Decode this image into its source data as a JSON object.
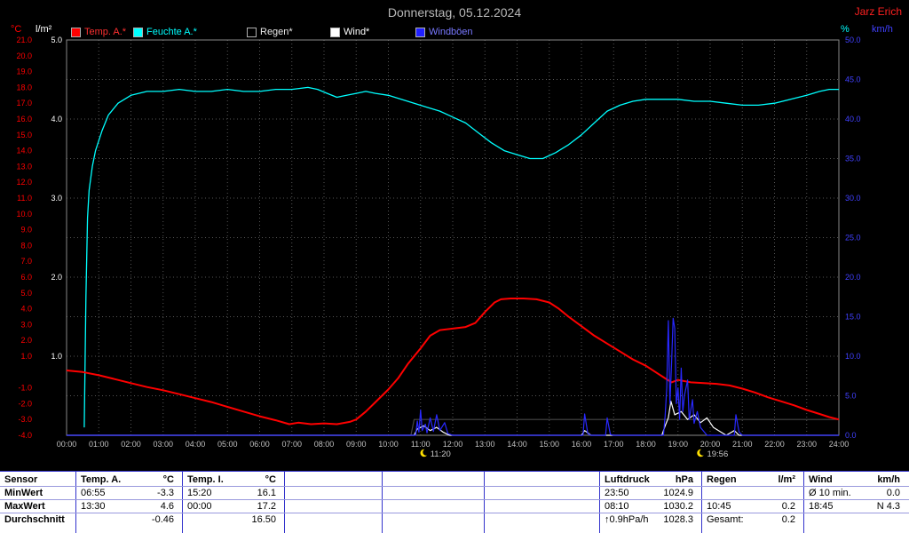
{
  "window": {
    "title": "Donnerstag, 05.12.2024",
    "owner": "Jarz Erich"
  },
  "legend": [
    {
      "label": "Temp. A.*",
      "swatch": "#ff0000",
      "text": "#ff3030"
    },
    {
      "label": "Feuchte A.*",
      "swatch": "#00ffff",
      "text": "#00ffff"
    },
    {
      "label": "Regen*",
      "swatch": "#000000",
      "text": "#e8e8e8"
    },
    {
      "label": "Wind*",
      "swatch": "#ffffff",
      "text": "#ffffff"
    },
    {
      "label": "Windböen",
      "swatch": "#2020ff",
      "text": "#7878ff"
    }
  ],
  "chart_data": {
    "type": "line",
    "title": "Donnerstag, 05.12.2024",
    "grid": "dotted",
    "marker_icon_color": "#ffe000",
    "x_ticks": [
      [
        "00:00",
        0
      ],
      [
        "01:00",
        1
      ],
      [
        "02:00",
        2
      ],
      [
        "03:00",
        3
      ],
      [
        "04:00",
        4
      ],
      [
        "05:00",
        5
      ],
      [
        "06:00",
        6
      ],
      [
        "07:00",
        7
      ],
      [
        "08:00",
        8
      ],
      [
        "09:00",
        9
      ],
      [
        "10:00",
        10
      ],
      [
        "11:00",
        11
      ],
      [
        "12:00",
        12
      ],
      [
        "13:00",
        13
      ],
      [
        "14:00",
        14
      ],
      [
        "15:00",
        15
      ],
      [
        "16:00",
        16
      ],
      [
        "17:00",
        17
      ],
      [
        "18:00",
        18
      ],
      [
        "19:00",
        19
      ],
      [
        "20:00",
        20
      ],
      [
        "21:00",
        21
      ],
      [
        "22:00",
        22
      ],
      [
        "23:00",
        23
      ],
      [
        "24:00",
        24
      ]
    ],
    "axes": {
      "temp_c": {
        "label": "°C",
        "color": "#ff0000",
        "min": -4,
        "max": 21,
        "ticks": [
          [
            "21.0",
            21
          ],
          [
            "20.0",
            20
          ],
          [
            "19.0",
            19
          ],
          [
            "18.0",
            18
          ],
          [
            "17.0",
            17
          ],
          [
            "16.0",
            16
          ],
          [
            "15.0",
            15
          ],
          [
            "14.0",
            14
          ],
          [
            "13.0",
            13
          ],
          [
            "12.0",
            12
          ],
          [
            "11.0",
            11
          ],
          [
            "10.0",
            10
          ],
          [
            "9.0",
            9
          ],
          [
            "8.0",
            8
          ],
          [
            "7.0",
            7
          ],
          [
            "6.0",
            6
          ],
          [
            "5.0",
            5
          ],
          [
            "4.0",
            4
          ],
          [
            "3.0",
            3
          ],
          [
            "2.0",
            2
          ],
          [
            "1.0",
            1
          ],
          [
            "-1.0",
            -1
          ],
          [
            "-2.0",
            -2
          ],
          [
            "-3.0",
            -3
          ],
          [
            "-4.0",
            -4
          ]
        ]
      },
      "rain_lm2": {
        "label": "l/m²",
        "color": "#ffffff",
        "min": 0,
        "max": 5,
        "ticks": [
          [
            "5.0",
            5
          ],
          [
            "4.0",
            4
          ],
          [
            "3.0",
            3
          ],
          [
            "2.0",
            2
          ],
          [
            "1.0",
            1
          ]
        ]
      },
      "humidity_pct": {
        "label": "%",
        "color": "#00ffff",
        "min": 0,
        "max": 100,
        "ticks": []
      },
      "wind_kmh": {
        "label": "km/h",
        "color": "#4040ff",
        "min": 0,
        "max": 50,
        "ticks": [
          [
            "50.0",
            50
          ],
          [
            "45.0",
            45
          ],
          [
            "40.0",
            40
          ],
          [
            "35.0",
            35
          ],
          [
            "30.0",
            30
          ],
          [
            "25.0",
            25
          ],
          [
            "20.0",
            20
          ],
          [
            "15.0",
            15
          ],
          [
            "10.0",
            10
          ],
          [
            "5.0",
            5
          ],
          [
            "0.0",
            0
          ]
        ]
      }
    },
    "series": [
      {
        "key": "regen",
        "name": "Regen*",
        "axis": "rain_lm2",
        "color": "#474747",
        "width": 1.2,
        "points": [
          [
            0,
            0
          ],
          [
            10.7,
            0
          ],
          [
            10.8,
            0.2
          ],
          [
            24,
            0.2
          ]
        ]
      },
      {
        "key": "feuchte_a",
        "name": "Feuchte A.*",
        "axis": "humidity_pct",
        "color": "#00ffff",
        "width": 1.3,
        "points": [
          [
            0.55,
            2
          ],
          [
            0.6,
            35
          ],
          [
            0.65,
            55
          ],
          [
            0.7,
            62
          ],
          [
            0.8,
            68
          ],
          [
            0.9,
            72
          ],
          [
            1.1,
            77
          ],
          [
            1.3,
            81
          ],
          [
            1.6,
            84
          ],
          [
            2,
            86
          ],
          [
            2.5,
            87
          ],
          [
            3,
            87
          ],
          [
            3.5,
            87.5
          ],
          [
            4,
            87
          ],
          [
            4.5,
            87
          ],
          [
            5,
            87.5
          ],
          [
            5.5,
            87
          ],
          [
            6,
            87
          ],
          [
            6.5,
            87.5
          ],
          [
            7,
            87.5
          ],
          [
            7.5,
            88
          ],
          [
            7.8,
            87.5
          ],
          [
            8.1,
            86.5
          ],
          [
            8.4,
            85.5
          ],
          [
            8.7,
            86
          ],
          [
            9,
            86.5
          ],
          [
            9.3,
            87
          ],
          [
            9.6,
            86.5
          ],
          [
            10,
            86
          ],
          [
            10.4,
            85
          ],
          [
            10.8,
            84
          ],
          [
            11.2,
            83
          ],
          [
            11.6,
            82
          ],
          [
            12,
            80.5
          ],
          [
            12.4,
            79
          ],
          [
            12.8,
            76.5
          ],
          [
            13.2,
            74
          ],
          [
            13.6,
            72
          ],
          [
            14,
            71
          ],
          [
            14.4,
            70
          ],
          [
            14.8,
            70
          ],
          [
            15.2,
            71.5
          ],
          [
            15.6,
            73.5
          ],
          [
            16,
            76
          ],
          [
            16.4,
            79
          ],
          [
            16.8,
            82
          ],
          [
            17.2,
            83.5
          ],
          [
            17.6,
            84.5
          ],
          [
            18,
            85
          ],
          [
            18.5,
            85
          ],
          [
            19,
            85
          ],
          [
            19.5,
            84.5
          ],
          [
            20,
            84.5
          ],
          [
            20.5,
            84
          ],
          [
            21,
            83.5
          ],
          [
            21.5,
            83.5
          ],
          [
            22,
            84
          ],
          [
            22.5,
            85
          ],
          [
            23,
            86
          ],
          [
            23.4,
            87
          ],
          [
            23.7,
            87.5
          ],
          [
            24,
            87.5
          ]
        ]
      },
      {
        "key": "wind",
        "name": "Wind*",
        "axis": "wind_kmh",
        "color": "#ffffff",
        "width": 1.2,
        "points": [
          [
            0,
            0
          ],
          [
            10.8,
            0
          ],
          [
            10.9,
            0.8
          ],
          [
            11.1,
            1.2
          ],
          [
            11.3,
            0.6
          ],
          [
            11.5,
            1
          ],
          [
            11.7,
            0.4
          ],
          [
            11.9,
            0
          ],
          [
            16,
            0
          ],
          [
            16.1,
            0.6
          ],
          [
            16.3,
            0
          ],
          [
            18.5,
            0
          ],
          [
            18.6,
            1.2
          ],
          [
            18.7,
            2.2
          ],
          [
            18.78,
            4.3
          ],
          [
            18.9,
            2.6
          ],
          [
            19.1,
            3
          ],
          [
            19.3,
            2
          ],
          [
            19.5,
            2.6
          ],
          [
            19.7,
            1.6
          ],
          [
            19.9,
            2.2
          ],
          [
            20.1,
            1
          ],
          [
            20.3,
            0.5
          ],
          [
            20.5,
            0
          ],
          [
            20.75,
            0.6
          ],
          [
            20.9,
            0
          ],
          [
            24,
            0
          ]
        ]
      },
      {
        "key": "temp_a",
        "name": "Temp. A.*",
        "axis": "temp_c",
        "color": "#ff0000",
        "width": 2,
        "points": [
          [
            0,
            0.1
          ],
          [
            0.5,
            0
          ],
          [
            1,
            -0.2
          ],
          [
            1.5,
            -0.45
          ],
          [
            2,
            -0.7
          ],
          [
            2.5,
            -0.95
          ],
          [
            3,
            -1.15
          ],
          [
            3.5,
            -1.4
          ],
          [
            4,
            -1.65
          ],
          [
            4.5,
            -1.9
          ],
          [
            5,
            -2.2
          ],
          [
            5.5,
            -2.5
          ],
          [
            6,
            -2.8
          ],
          [
            6.5,
            -3.05
          ],
          [
            6.92,
            -3.3
          ],
          [
            7.2,
            -3.2
          ],
          [
            7.6,
            -3.3
          ],
          [
            8,
            -3.25
          ],
          [
            8.4,
            -3.3
          ],
          [
            8.8,
            -3.15
          ],
          [
            9,
            -3
          ],
          [
            9.3,
            -2.5
          ],
          [
            9.6,
            -1.9
          ],
          [
            10,
            -1.1
          ],
          [
            10.3,
            -0.4
          ],
          [
            10.6,
            0.5
          ],
          [
            11,
            1.5
          ],
          [
            11.3,
            2.3
          ],
          [
            11.6,
            2.65
          ],
          [
            12,
            2.75
          ],
          [
            12.4,
            2.85
          ],
          [
            12.7,
            3.1
          ],
          [
            13,
            3.8
          ],
          [
            13.3,
            4.4
          ],
          [
            13.5,
            4.6
          ],
          [
            13.8,
            4.65
          ],
          [
            14.2,
            4.65
          ],
          [
            14.6,
            4.6
          ],
          [
            15,
            4.4
          ],
          [
            15.3,
            4
          ],
          [
            15.6,
            3.5
          ],
          [
            16,
            2.9
          ],
          [
            16.4,
            2.3
          ],
          [
            16.8,
            1.8
          ],
          [
            17.2,
            1.3
          ],
          [
            17.6,
            0.8
          ],
          [
            18,
            0.4
          ],
          [
            18.3,
            0
          ],
          [
            18.6,
            -0.4
          ],
          [
            18.8,
            -0.65
          ],
          [
            19,
            -0.5
          ],
          [
            19.4,
            -0.65
          ],
          [
            19.8,
            -0.7
          ],
          [
            20.2,
            -0.75
          ],
          [
            20.6,
            -0.85
          ],
          [
            21,
            -1.05
          ],
          [
            21.4,
            -1.3
          ],
          [
            21.8,
            -1.6
          ],
          [
            22.2,
            -1.85
          ],
          [
            22.6,
            -2.1
          ],
          [
            23,
            -2.4
          ],
          [
            23.4,
            -2.65
          ],
          [
            23.7,
            -2.85
          ],
          [
            24,
            -3
          ]
        ]
      },
      {
        "key": "windboeen",
        "name": "Windböen",
        "axis": "wind_kmh",
        "color": "#2828ff",
        "width": 1.2,
        "points": [
          [
            0,
            0
          ],
          [
            10.85,
            0
          ],
          [
            10.9,
            1.8
          ],
          [
            10.95,
            0.4
          ],
          [
            11,
            3.2
          ],
          [
            11.05,
            0.6
          ],
          [
            11.15,
            1.4
          ],
          [
            11.2,
            0.3
          ],
          [
            11.3,
            2.2
          ],
          [
            11.4,
            0.5
          ],
          [
            11.5,
            2.6
          ],
          [
            11.6,
            0.6
          ],
          [
            11.75,
            1.6
          ],
          [
            11.85,
            0.2
          ],
          [
            12,
            0
          ],
          [
            16.05,
            0
          ],
          [
            16.1,
            2.7
          ],
          [
            16.2,
            0.2
          ],
          [
            16.3,
            0
          ],
          [
            16.75,
            0
          ],
          [
            16.8,
            2.2
          ],
          [
            16.9,
            0.1
          ],
          [
            17,
            0
          ],
          [
            18.55,
            0
          ],
          [
            18.6,
            2.5
          ],
          [
            18.65,
            6
          ],
          [
            18.7,
            14.5
          ],
          [
            18.75,
            4
          ],
          [
            18.8,
            9
          ],
          [
            18.85,
            14.8
          ],
          [
            18.9,
            13.5
          ],
          [
            18.95,
            4
          ],
          [
            19,
            6
          ],
          [
            19.05,
            2
          ],
          [
            19.1,
            8.5
          ],
          [
            19.15,
            3
          ],
          [
            19.2,
            5
          ],
          [
            19.3,
            7
          ],
          [
            19.35,
            2
          ],
          [
            19.45,
            4.5
          ],
          [
            19.5,
            1.5
          ],
          [
            19.6,
            3
          ],
          [
            19.7,
            1
          ],
          [
            19.8,
            0.5
          ],
          [
            19.9,
            0
          ],
          [
            20.75,
            0
          ],
          [
            20.8,
            2.6
          ],
          [
            20.9,
            0.4
          ],
          [
            21,
            0
          ],
          [
            24,
            0
          ]
        ]
      }
    ],
    "markers": [
      {
        "time": "11:20",
        "hour": 11.33
      },
      {
        "time": "19:56",
        "hour": 19.93
      }
    ]
  },
  "table": {
    "row_labels": [
      "Sensor",
      "MinWert",
      "MaxWert",
      "Durchschnitt"
    ],
    "columns": [
      {
        "name": "Temp. A.",
        "unit": "°C",
        "min_time": "06:55",
        "min": "-3.3",
        "max_time": "13:30",
        "max": "4.6",
        "avg_label": "",
        "avg": "-0.46"
      },
      {
        "name": "Temp. I.",
        "unit": "°C",
        "min_time": "15:20",
        "min": "16.1",
        "max_time": "00:00",
        "max": "17.2",
        "avg_label": "",
        "avg": "16.50"
      },
      {
        "name": "Luftdruck",
        "unit": "hPa",
        "min_time": "23:50",
        "min": "1024.9",
        "max_time": "08:10",
        "max": "1030.2",
        "avg_label": "↑0.9hPa/h",
        "avg": "1028.3"
      },
      {
        "name": "Regen",
        "unit": "l/m²",
        "min_time": "",
        "min": "",
        "max_time": "10:45",
        "max": "0.2",
        "avg_label": "Gesamt:",
        "avg": "0.2"
      },
      {
        "name": "Wind",
        "unit": "km/h",
        "min_time": "Ø 10 min.",
        "min": "0.0",
        "max_time": "18:45",
        "max": "N 4.3",
        "avg_label": "",
        "avg": ""
      }
    ]
  }
}
